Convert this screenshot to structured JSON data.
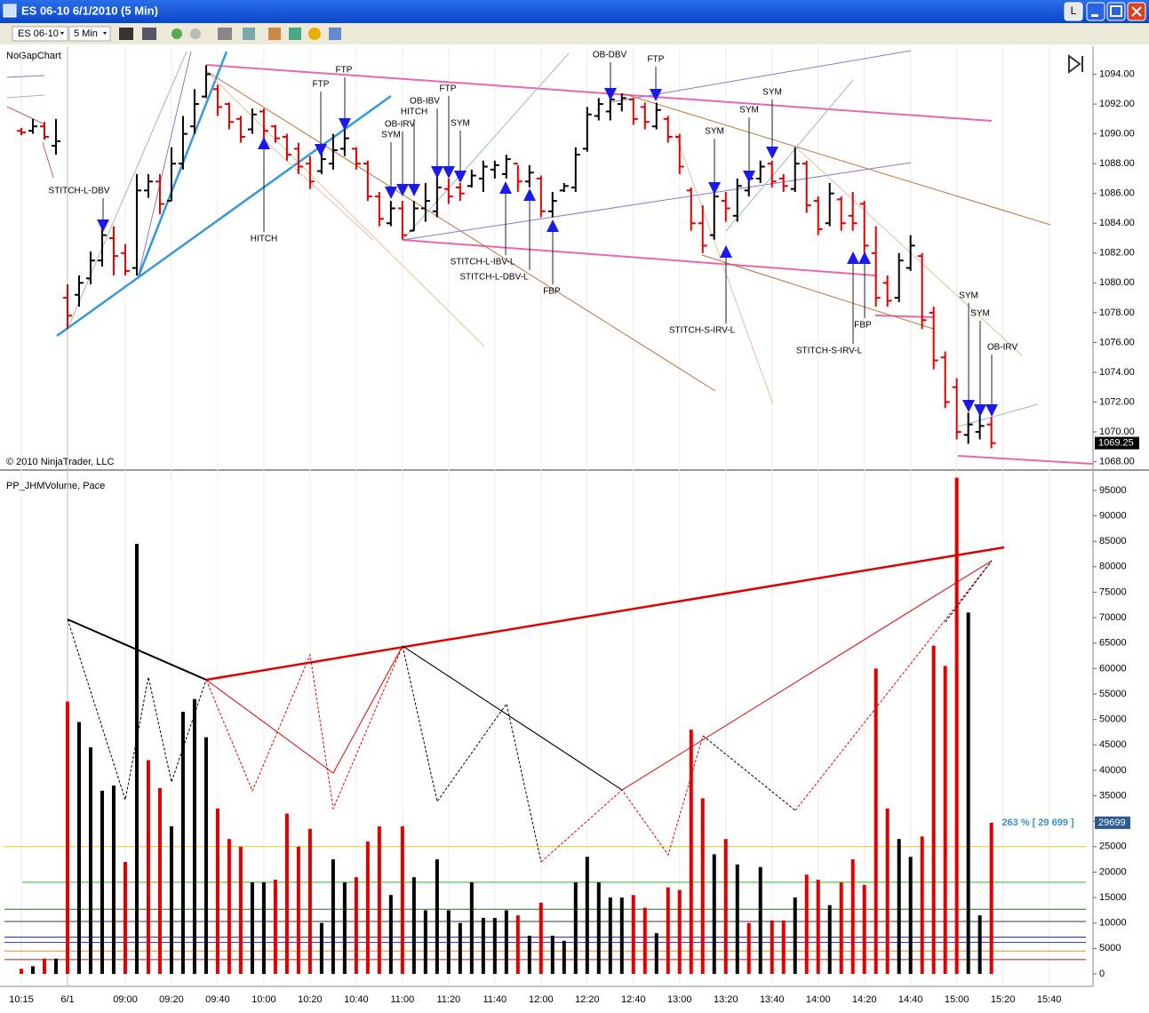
{
  "window": {
    "title": "ES 06-10  6/1/2010 (5 Min)",
    "button": "L"
  },
  "toolbar": {
    "instrument": "ES 06-10",
    "interval": "5 Min"
  },
  "chart_data": [
    {
      "type": "ohlc",
      "title": "NoGapChart",
      "copyright": "© 2010 NinjaTrader, LLC",
      "up_color": "#000000",
      "down_color": "#e00000",
      "ylim": [
        1067.5,
        1095.7
      ],
      "yticks": [
        {
          "value": 1068,
          "label": "1068.00"
        },
        {
          "value": 1070,
          "label": "1070.00"
        },
        {
          "value": 1072,
          "label": "1072.00"
        },
        {
          "value": 1074,
          "label": "1074.00"
        },
        {
          "value": 1076,
          "label": "1076.00"
        },
        {
          "value": 1078,
          "label": "1078.00"
        },
        {
          "value": 1080,
          "label": "1080.00"
        },
        {
          "value": 1082,
          "label": "1082.00"
        },
        {
          "value": 1084,
          "label": "1084.00"
        },
        {
          "value": 1086,
          "label": "1086.00"
        },
        {
          "value": 1088,
          "label": "1088.00"
        },
        {
          "value": 1090,
          "label": "1090.00"
        },
        {
          "value": 1092,
          "label": "1092.00"
        },
        {
          "value": 1094,
          "label": "1094.00"
        }
      ],
      "last_label": "1069.25",
      "open": [
        1090.2,
        1090.2,
        1090.5,
        1089.2,
        1079,
        1079.2,
        1080.3,
        1081.5,
        1083,
        1082,
        1081,
        1086.2,
        1086.8,
        1085.5,
        1088,
        1090.5,
        1092.5,
        1093,
        1092,
        1091,
        1090.3,
        1091.5,
        1090.5,
        1089.8,
        1089,
        1088,
        1087.5,
        1088,
        1089,
        1089,
        1088,
        1085.8,
        1084,
        1085,
        1083.5,
        1085,
        1084.8,
        1086.3,
        1086.4,
        1086.5,
        1087,
        1087.6,
        1087.3,
        1088,
        1086.8,
        1087,
        1084.8,
        1086.2,
        1086.4,
        1089,
        1091.2,
        1091.5,
        1092,
        1092.3,
        1091.8,
        1090.5,
        1091,
        1089.8,
        1086.2,
        1084,
        1083.2,
        1085.5,
        1084.5,
        1086.2,
        1087,
        1088,
        1087,
        1086.3,
        1088,
        1085.5,
        1084,
        1085.6,
        1084.5,
        1085.3,
        1082,
        1080,
        1079,
        1081,
        1081.8,
        1078,
        1075,
        1073,
        1069.8,
        1070,
        1070.5
      ],
      "high": [
        1090.4,
        1091,
        1090.8,
        1091,
        1079.9,
        1080.5,
        1082.1,
        1084.2,
        1083.8,
        1082.6,
        1087.3,
        1087.3,
        1087.3,
        1089.1,
        1091.2,
        1093,
        1094.6,
        1093.3,
        1092.1,
        1091.2,
        1091.7,
        1091.7,
        1090.6,
        1090,
        1089.4,
        1088.5,
        1089.1,
        1090,
        1090.3,
        1089.1,
        1088.2,
        1086.1,
        1085.5,
        1085.5,
        1085.5,
        1086.7,
        1087.3,
        1087,
        1086.7,
        1087.6,
        1088.2,
        1088.2,
        1088.6,
        1087.9,
        1087.9,
        1087.2,
        1086.1,
        1086.7,
        1089.1,
        1091.8,
        1092.4,
        1092.4,
        1092.7,
        1092.4,
        1092.1,
        1092.1,
        1091.2,
        1090,
        1086.4,
        1085.2,
        1086.4,
        1086.1,
        1087,
        1087.3,
        1088.2,
        1088.2,
        1087.3,
        1089.1,
        1088.2,
        1085.8,
        1086.7,
        1085.8,
        1086.1,
        1085.5,
        1083.8,
        1080.5,
        1082,
        1083.2,
        1082,
        1078.4,
        1075.4,
        1073.6,
        1071.3,
        1071.3,
        1071
      ],
      "low": [
        1089.9,
        1090,
        1089.6,
        1088.6,
        1076.9,
        1078.4,
        1079.9,
        1081.1,
        1080.5,
        1080.5,
        1080.5,
        1085.7,
        1084.6,
        1085.5,
        1087.6,
        1090,
        1092.4,
        1091.2,
        1090.3,
        1089.4,
        1090,
        1089.7,
        1089.4,
        1088.2,
        1087.3,
        1086.3,
        1087.3,
        1087.6,
        1088.5,
        1087.6,
        1085.5,
        1083.8,
        1083.8,
        1082.9,
        1083.5,
        1084.1,
        1084.4,
        1085.3,
        1085.5,
        1086.4,
        1086.1,
        1087,
        1087,
        1086.1,
        1086.4,
        1084.4,
        1084.4,
        1086.1,
        1086.1,
        1088.8,
        1090.9,
        1090.9,
        1091.5,
        1090.6,
        1090.3,
        1090.3,
        1089.4,
        1087.3,
        1083.5,
        1082,
        1082.9,
        1084.1,
        1084.1,
        1085.8,
        1086.7,
        1086.4,
        1086.1,
        1086.1,
        1084.7,
        1083.2,
        1083.8,
        1083.5,
        1083.5,
        1082,
        1078.4,
        1078.4,
        1078.7,
        1080.8,
        1076.9,
        1074.2,
        1071.6,
        1069.5,
        1069.2,
        1069.5,
        1068.9
      ],
      "close": [
        1090.1,
        1090.5,
        1089.8,
        1089.5,
        1077.8,
        1080,
        1081.5,
        1083.2,
        1081.8,
        1080.8,
        1086.2,
        1086.8,
        1085.3,
        1088,
        1090,
        1092,
        1094,
        1091.8,
        1090.8,
        1089.8,
        1091.3,
        1090.2,
        1089.7,
        1088.6,
        1087.8,
        1086.8,
        1088.3,
        1088.9,
        1089.7,
        1088,
        1085.8,
        1084.3,
        1085,
        1083.2,
        1085,
        1085.5,
        1086.4,
        1085.8,
        1086,
        1087.2,
        1087.8,
        1087.9,
        1088.3,
        1086.8,
        1087.4,
        1084.8,
        1085.5,
        1086.5,
        1088.6,
        1091.3,
        1092,
        1092.3,
        1092.4,
        1091,
        1090.8,
        1091.6,
        1089.8,
        1087.8,
        1084,
        1082.5,
        1085.8,
        1085,
        1086.5,
        1087,
        1087.8,
        1086.8,
        1086.5,
        1088,
        1085.2,
        1083.6,
        1086,
        1084,
        1084,
        1082.5,
        1079,
        1078.8,
        1081.5,
        1082.5,
        1077.5,
        1074.8,
        1072,
        1070,
        1070.5,
        1070.4,
        1069.25
      ],
      "annotations": [
        "STITCH-L-DBV",
        "HITCH",
        "FTP",
        "FTP",
        "SYM",
        "OB-IRV",
        "HITCH",
        "OB-IBV",
        "FTP",
        "SYM",
        "STITCH-L-IBV-L",
        "STITCH-L-DBV-L",
        "FBP",
        "OB-DBV",
        "FTP",
        "SYM",
        "SYM",
        "SYM",
        "STITCH-S-IRV-L",
        "FBP",
        "STITCH-S-IRV-L",
        "SYM",
        "SYM",
        "OB-IRV"
      ]
    },
    {
      "type": "bar",
      "title": "PP_JHMVolume, Pace",
      "pace_label": "263 % [ 29 699 ]",
      "last_label": "29699",
      "ylim": [
        -2100,
        98300
      ],
      "yticks": [
        0,
        5000,
        10000,
        15000,
        20000,
        25000,
        30000,
        35000,
        40000,
        45000,
        50000,
        55000,
        60000,
        65000,
        70000,
        75000,
        80000,
        85000,
        90000,
        95000
      ],
      "xlim": [
        -1.5,
        92.8
      ],
      "xticks": [
        {
          "value": 0,
          "label": "10:15"
        },
        {
          "value": 4,
          "label": "6/1"
        },
        {
          "value": 9,
          "label": "09:00"
        },
        {
          "value": 13,
          "label": "09:20"
        },
        {
          "value": 17,
          "label": "09:40"
        },
        {
          "value": 21,
          "label": "10:00"
        },
        {
          "value": 25,
          "label": "10:20"
        },
        {
          "value": 29,
          "label": "10:40"
        },
        {
          "value": 33,
          "label": "11:00"
        },
        {
          "value": 37,
          "label": "11:20"
        },
        {
          "value": 41,
          "label": "11:40"
        },
        {
          "value": 45,
          "label": "12:00"
        },
        {
          "value": 49,
          "label": "12:20"
        },
        {
          "value": 53,
          "label": "12:40"
        },
        {
          "value": 57,
          "label": "13:00"
        },
        {
          "value": 61,
          "label": "13:20"
        },
        {
          "value": 65,
          "label": "13:40"
        },
        {
          "value": 69,
          "label": "14:00"
        },
        {
          "value": 73,
          "label": "14:20"
        },
        {
          "value": 77,
          "label": "14:40"
        },
        {
          "value": 81,
          "label": "15:00"
        },
        {
          "value": 85,
          "label": "15:20"
        },
        {
          "value": 89,
          "label": "15:40"
        }
      ],
      "levels": [
        {
          "value": 25000,
          "color": "#d8cc20"
        },
        {
          "value": 18000,
          "color": "#2db52d"
        },
        {
          "value": 12700,
          "color": "#2e6b2e"
        },
        {
          "value": 10300,
          "color": "#333355"
        },
        {
          "value": 7200,
          "color": "#1a1a80"
        },
        {
          "value": 6200,
          "color": "#3040d0"
        },
        {
          "value": 4500,
          "color": "#e0901a"
        },
        {
          "value": 2800,
          "color": "#a02020"
        }
      ],
      "values": [
        1000,
        1500,
        3000,
        3000,
        53500,
        49500,
        44500,
        36000,
        37000,
        22000,
        84500,
        42000,
        36500,
        29000,
        51500,
        54000,
        46500,
        32500,
        26500,
        25000,
        18000,
        18000,
        18500,
        31500,
        25000,
        28500,
        10000,
        22500,
        18000,
        19000,
        26000,
        29000,
        15500,
        29000,
        19000,
        12500,
        22500,
        12500,
        10000,
        18000,
        11000,
        11000,
        12500,
        11500,
        7500,
        14000,
        7500,
        6500,
        18000,
        23000,
        18000,
        15000,
        15000,
        15500,
        13000,
        8000,
        17000,
        16500,
        48000,
        34500,
        23500,
        26500,
        21500,
        10000,
        21000,
        10500,
        10500,
        15000,
        19500,
        18500,
        13500,
        18000,
        22500,
        17500,
        60000,
        32500,
        26500,
        23000,
        27000,
        64500,
        60500,
        97500,
        71000,
        11500,
        29699
      ],
      "colors": [
        "#e00000",
        "#000000",
        "#e00000",
        "#000000",
        "#e00000",
        "#000000",
        "#000000",
        "#000000",
        "#000000",
        "#e00000",
        "#000000",
        "#e00000",
        "#e00000",
        "#000000",
        "#000000",
        "#000000",
        "#000000",
        "#e00000",
        "#e00000",
        "#e00000",
        "#000000",
        "#000000",
        "#e00000",
        "#e00000",
        "#e00000",
        "#e00000",
        "#000000",
        "#000000",
        "#000000",
        "#e00000",
        "#e00000",
        "#e00000",
        "#000000",
        "#e00000",
        "#000000",
        "#000000",
        "#000000",
        "#000000",
        "#000000",
        "#000000",
        "#000000",
        "#000000",
        "#000000",
        "#e00000",
        "#000000",
        "#e00000",
        "#000000",
        "#000000",
        "#000000",
        "#000000",
        "#000000",
        "#000000",
        "#000000",
        "#e00000",
        "#e00000",
        "#000000",
        "#e00000",
        "#e00000",
        "#e00000",
        "#e00000",
        "#000000",
        "#e00000",
        "#000000",
        "#e00000",
        "#000000",
        "#e00000",
        "#e00000",
        "#000000",
        "#e00000",
        "#e00000",
        "#000000",
        "#e00000",
        "#e00000",
        "#e00000",
        "#e00000",
        "#e00000",
        "#000000",
        "#000000",
        "#e00000",
        "#e00000",
        "#e00000",
        "#e00000",
        "#000000",
        "#000000",
        "#e00000"
      ]
    }
  ]
}
